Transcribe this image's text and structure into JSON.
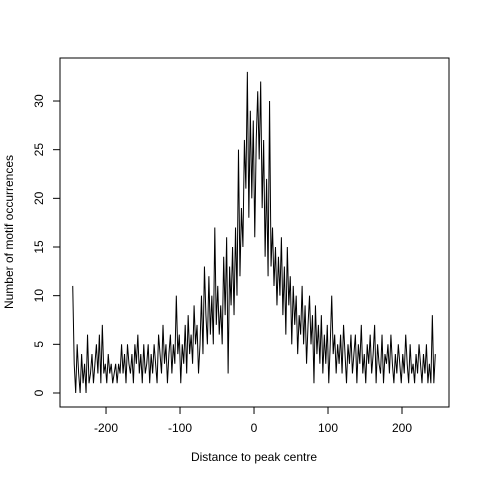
{
  "chart_data": {
    "type": "line",
    "xlabel": "Distance to peak centre",
    "ylabel": "Number of motif occurrences",
    "xlim": [
      -262.2,
      263.5
    ],
    "ylim": [
      -1.44,
      34.42
    ],
    "xticks": [
      -200,
      -100,
      0,
      100,
      200
    ],
    "yticks": [
      0,
      5,
      10,
      15,
      20,
      25,
      30
    ],
    "color": "#000000",
    "x": [
      -245,
      -243,
      -241,
      -239,
      -237,
      -235,
      -233,
      -231,
      -229,
      -227,
      -225,
      -223,
      -221,
      -219,
      -217,
      -215,
      -213,
      -211,
      -209,
      -207,
      -205,
      -203,
      -201,
      -199,
      -197,
      -195,
      -193,
      -191,
      -189,
      -187,
      -185,
      -183,
      -181,
      -179,
      -177,
      -175,
      -173,
      -171,
      -169,
      -167,
      -165,
      -163,
      -161,
      -159,
      -157,
      -155,
      -153,
      -151,
      -149,
      -147,
      -145,
      -143,
      -141,
      -139,
      -137,
      -135,
      -133,
      -131,
      -129,
      -127,
      -125,
      -123,
      -121,
      -119,
      -117,
      -115,
      -113,
      -111,
      -109,
      -107,
      -105,
      -103,
      -101,
      -99,
      -97,
      -95,
      -93,
      -91,
      -89,
      -87,
      -85,
      -83,
      -81,
      -79,
      -77,
      -75,
      -73,
      -71,
      -69,
      -67,
      -65,
      -63,
      -61,
      -59,
      -57,
      -55,
      -53,
      -51,
      -49,
      -47,
      -45,
      -43,
      -41,
      -39,
      -37,
      -35,
      -33,
      -31,
      -29,
      -27,
      -25,
      -23,
      -21,
      -19,
      -17,
      -15,
      -13,
      -11,
      -9,
      -7,
      -5,
      -3,
      -1,
      1,
      3,
      5,
      7,
      9,
      11,
      13,
      15,
      17,
      19,
      21,
      23,
      25,
      27,
      29,
      31,
      33,
      35,
      37,
      39,
      41,
      43,
      45,
      47,
      49,
      51,
      53,
      55,
      57,
      59,
      61,
      63,
      65,
      67,
      69,
      71,
      73,
      75,
      77,
      79,
      81,
      83,
      85,
      87,
      89,
      91,
      93,
      95,
      97,
      99,
      101,
      103,
      105,
      107,
      109,
      111,
      113,
      115,
      117,
      119,
      121,
      123,
      125,
      127,
      129,
      131,
      133,
      135,
      137,
      139,
      141,
      143,
      145,
      147,
      149,
      151,
      153,
      155,
      157,
      159,
      161,
      163,
      165,
      167,
      169,
      171,
      173,
      175,
      177,
      179,
      181,
      183,
      185,
      187,
      189,
      191,
      193,
      195,
      197,
      199,
      201,
      203,
      205,
      207,
      209,
      211,
      213,
      215,
      217,
      219,
      221,
      223,
      225,
      227,
      229,
      231,
      233,
      235,
      237,
      239,
      241,
      243,
      245
    ],
    "values": [
      11,
      3,
      0,
      5,
      2,
      0,
      4,
      1,
      3,
      0,
      6,
      1,
      2,
      4,
      1,
      3,
      5,
      2,
      6,
      1,
      7,
      2,
      3,
      1,
      4,
      2,
      3,
      1,
      2,
      3,
      1,
      3,
      2,
      5,
      2,
      4,
      1,
      5,
      3,
      2,
      4,
      1,
      5,
      3,
      6,
      2,
      4,
      1,
      5,
      2,
      3,
      5,
      1,
      4,
      2,
      5,
      3,
      1,
      6,
      4,
      2,
      7,
      3,
      5,
      1,
      4,
      6,
      2,
      5,
      3,
      10,
      4,
      6,
      1,
      5,
      3,
      7,
      2,
      8,
      4,
      6,
      3,
      9,
      5,
      7,
      2,
      5,
      10,
      4,
      13,
      8,
      5,
      12,
      6,
      10,
      5,
      17,
      7,
      11,
      6,
      9,
      5,
      14,
      8,
      16,
      2,
      13,
      9,
      15,
      8,
      17,
      10,
      25,
      12,
      19,
      15,
      26,
      21,
      33,
      18,
      29,
      20,
      28,
      16,
      26,
      31,
      24,
      32,
      19,
      26,
      14,
      22,
      12,
      30,
      13,
      17,
      11,
      15,
      9,
      14,
      10,
      16,
      8,
      13,
      6,
      15,
      9,
      12,
      5,
      11,
      7,
      10,
      4,
      8,
      6,
      11,
      5,
      9,
      3,
      7,
      10,
      5,
      8,
      1,
      9,
      4,
      7,
      3,
      8,
      2,
      6,
      3,
      7,
      1,
      5,
      10,
      4,
      6,
      2,
      5,
      3,
      6,
      2,
      7,
      4,
      1,
      5,
      3,
      6,
      2,
      4,
      6,
      1,
      5,
      3,
      7,
      2,
      4,
      1,
      5,
      3,
      6,
      2,
      4,
      7,
      1,
      5,
      3,
      2,
      6,
      1,
      4,
      3,
      5,
      2,
      6,
      3,
      1,
      4,
      2,
      5,
      3,
      1,
      4,
      2,
      6,
      3,
      1,
      5,
      2,
      3,
      1,
      4,
      2,
      5,
      3,
      1,
      4,
      2,
      5,
      1,
      3,
      1,
      8,
      1,
      4
    ]
  }
}
